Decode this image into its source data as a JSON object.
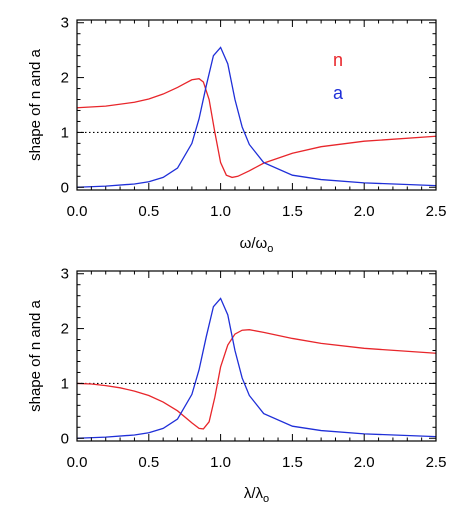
{
  "chart_data": [
    {
      "type": "line",
      "xlabel": "ω/ω",
      "xlabel_sub": "o",
      "ylabel": "shape of n and a",
      "xlim": [
        0,
        2.5
      ],
      "ylim": [
        -0.05,
        3.05
      ],
      "xticks": [
        "0.0",
        "0.5",
        "1.0",
        "1.5",
        "2.0",
        "2.5"
      ],
      "yticks": [
        "0",
        "1",
        "2",
        "3"
      ],
      "reference_line": {
        "y": 1,
        "style": "dotted"
      },
      "legend_placement": "top-right",
      "series": [
        {
          "name": "n",
          "color": "#e8262b",
          "x": [
            0.0,
            0.2,
            0.4,
            0.5,
            0.6,
            0.7,
            0.75,
            0.8,
            0.85,
            0.88,
            0.92,
            0.96,
            1.0,
            1.04,
            1.08,
            1.12,
            1.2,
            1.3,
            1.5,
            1.7,
            2.0,
            2.5
          ],
          "values": [
            1.45,
            1.48,
            1.55,
            1.61,
            1.7,
            1.82,
            1.89,
            1.96,
            1.98,
            1.92,
            1.6,
            1.0,
            0.45,
            0.22,
            0.18,
            0.2,
            0.3,
            0.44,
            0.62,
            0.74,
            0.84,
            0.93
          ]
        },
        {
          "name": "a",
          "color": "#1f2fd8",
          "x": [
            0.0,
            0.2,
            0.4,
            0.5,
            0.6,
            0.7,
            0.8,
            0.85,
            0.9,
            0.95,
            1.0,
            1.05,
            1.1,
            1.15,
            1.2,
            1.3,
            1.5,
            1.7,
            2.0,
            2.5
          ],
          "values": [
            0.0,
            0.02,
            0.06,
            0.1,
            0.18,
            0.35,
            0.8,
            1.25,
            1.85,
            2.4,
            2.55,
            2.25,
            1.6,
            1.1,
            0.78,
            0.45,
            0.22,
            0.14,
            0.08,
            0.03
          ]
        }
      ]
    },
    {
      "type": "line",
      "xlabel": "λ/λ",
      "xlabel_sub": "o",
      "ylabel": "shape of n and a",
      "xlim": [
        0,
        2.5
      ],
      "ylim": [
        -0.05,
        3.05
      ],
      "xticks": [
        "0.0",
        "0.5",
        "1.0",
        "1.5",
        "2.0",
        "2.5"
      ],
      "yticks": [
        "0",
        "1",
        "2",
        "3"
      ],
      "reference_line": {
        "y": 1,
        "style": "dotted"
      },
      "series": [
        {
          "name": "n",
          "color": "#e8262b",
          "x": [
            0.0,
            0.1,
            0.2,
            0.3,
            0.4,
            0.5,
            0.6,
            0.7,
            0.8,
            0.85,
            0.88,
            0.92,
            0.96,
            1.0,
            1.05,
            1.1,
            1.15,
            1.2,
            1.3,
            1.5,
            1.7,
            2.0,
            2.5
          ],
          "values": [
            1.0,
            0.99,
            0.96,
            0.92,
            0.86,
            0.78,
            0.66,
            0.5,
            0.28,
            0.18,
            0.17,
            0.3,
            0.75,
            1.3,
            1.7,
            1.9,
            1.97,
            1.98,
            1.93,
            1.82,
            1.73,
            1.64,
            1.55
          ]
        },
        {
          "name": "a",
          "color": "#1f2fd8",
          "x": [
            0.0,
            0.2,
            0.4,
            0.5,
            0.6,
            0.7,
            0.8,
            0.85,
            0.9,
            0.95,
            1.0,
            1.05,
            1.1,
            1.15,
            1.2,
            1.3,
            1.5,
            1.7,
            2.0,
            2.5
          ],
          "values": [
            0.0,
            0.02,
            0.06,
            0.1,
            0.18,
            0.35,
            0.8,
            1.25,
            1.85,
            2.4,
            2.55,
            2.25,
            1.6,
            1.1,
            0.78,
            0.45,
            0.22,
            0.14,
            0.08,
            0.03
          ]
        }
      ]
    }
  ]
}
